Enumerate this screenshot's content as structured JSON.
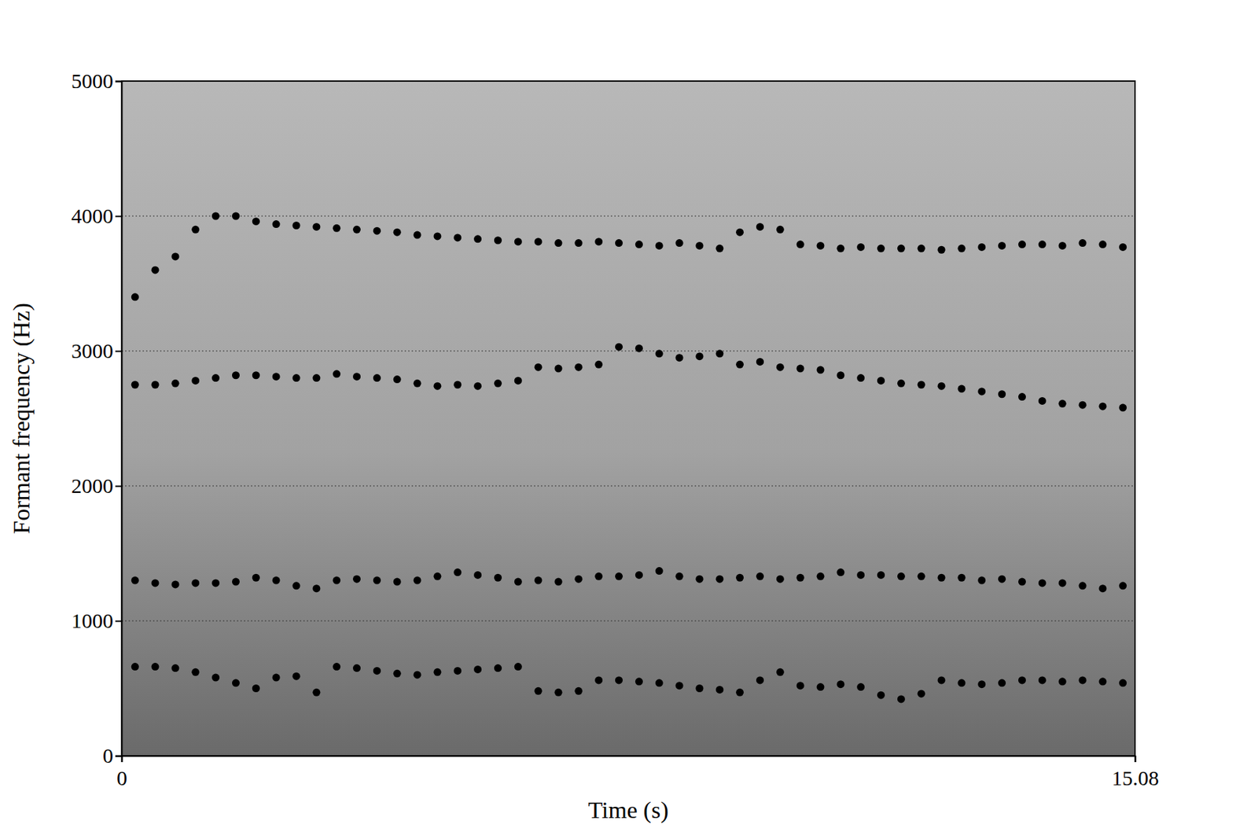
{
  "chart_data": {
    "type": "scatter",
    "x_label": "Time (s)",
    "y_label": "Formant frequency (Hz)",
    "xlim": [
      0,
      15.08
    ],
    "xticks": [
      0,
      15.08
    ],
    "ylim": [
      0,
      5000
    ],
    "yticks": [
      0,
      1000,
      2000,
      3000,
      4000,
      5000
    ],
    "grid": true,
    "marker": "circle",
    "x": [
      0.2,
      0.5,
      0.8,
      1.1,
      1.4,
      1.7,
      2.0,
      2.3,
      2.6,
      2.9,
      3.2,
      3.5,
      3.8,
      4.1,
      4.4,
      4.7,
      5.0,
      5.3,
      5.6,
      5.9,
      6.2,
      6.5,
      6.8,
      7.1,
      7.4,
      7.7,
      8.0,
      8.3,
      8.6,
      8.9,
      9.2,
      9.5,
      9.8,
      10.1,
      10.4,
      10.7,
      11.0,
      11.3,
      11.6,
      11.9,
      12.2,
      12.5,
      12.8,
      13.1,
      13.4,
      13.7,
      14.0,
      14.3,
      14.6,
      14.9
    ],
    "series": [
      {
        "color": "#000000",
        "values": [
          660,
          660,
          650,
          620,
          580,
          540,
          500,
          580,
          590,
          470,
          660,
          650,
          630,
          610,
          600,
          620,
          630,
          640,
          650,
          660,
          480,
          470,
          480,
          560,
          560,
          550,
          540,
          520,
          500,
          490,
          470,
          560,
          620,
          520,
          510,
          530,
          510,
          450,
          420,
          460,
          560,
          540,
          530,
          540,
          560,
          560,
          550,
          560,
          550,
          540
        ]
      },
      {
        "color": "#000000",
        "values": [
          1300,
          1280,
          1270,
          1280,
          1280,
          1290,
          1320,
          1300,
          1260,
          1240,
          1300,
          1310,
          1300,
          1290,
          1300,
          1330,
          1360,
          1340,
          1320,
          1290,
          1300,
          1290,
          1310,
          1330,
          1330,
          1340,
          1370,
          1330,
          1310,
          1310,
          1320,
          1330,
          1310,
          1320,
          1330,
          1360,
          1340,
          1340,
          1330,
          1330,
          1320,
          1320,
          1300,
          1310,
          1290,
          1280,
          1280,
          1260,
          1240,
          1260
        ]
      },
      {
        "color": "#000000",
        "values": [
          2750,
          2750,
          2760,
          2780,
          2800,
          2820,
          2820,
          2810,
          2800,
          2800,
          2830,
          2810,
          2800,
          2790,
          2760,
          2740,
          2750,
          2740,
          2760,
          2780,
          2880,
          2870,
          2880,
          2900,
          3030,
          3020,
          2980,
          2950,
          2960,
          2980,
          2900,
          2920,
          2880,
          2870,
          2860,
          2820,
          2800,
          2780,
          2760,
          2750,
          2740,
          2720,
          2700,
          2680,
          2660,
          2630,
          2610,
          2600,
          2590,
          2580
        ]
      },
      {
        "color": "#000000",
        "values": [
          3400,
          3600,
          3700,
          3900,
          4000,
          4000,
          3960,
          3940,
          3930,
          3920,
          3910,
          3900,
          3890,
          3880,
          3860,
          3850,
          3840,
          3830,
          3820,
          3810,
          3810,
          3800,
          3800,
          3810,
          3800,
          3790,
          3780,
          3800,
          3780,
          3760,
          3880,
          3920,
          3900,
          3790,
          3780,
          3760,
          3770,
          3760,
          3760,
          3760,
          3750,
          3760,
          3770,
          3780,
          3790,
          3790,
          3780,
          3800,
          3790,
          3770
        ]
      }
    ]
  }
}
